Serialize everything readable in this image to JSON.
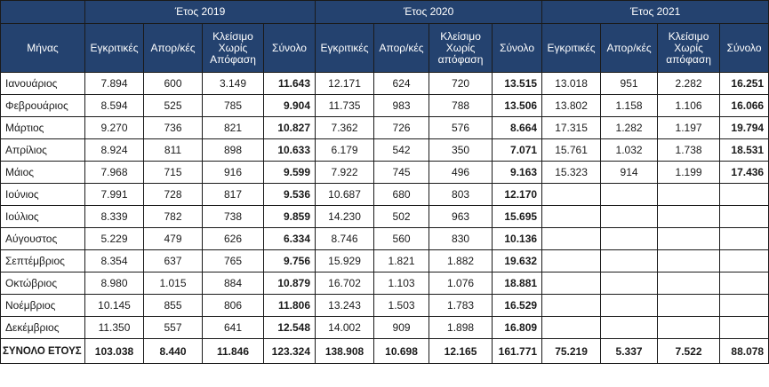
{
  "header": {
    "month_label": "Μήνας",
    "years": [
      "Έτος 2019",
      "Έτος 2020",
      "Έτος 2021"
    ],
    "columns": [
      "Εγκριτικές",
      "Απορ/κές",
      "Κλείσιμο Χωρίς Απόφαση",
      "Σύνολο"
    ],
    "columns_2020": [
      "Εγκριτικές",
      "Απορ/κές",
      "Κλείσιμο Χωρίς απόφαση",
      "Σύνολο"
    ],
    "columns_2021": [
      "Εγκριτικές",
      "Απορ/κές",
      "Κλείσιμο Χωρίς απόφαση",
      "Σύνολο"
    ]
  },
  "rows": [
    {
      "month": "Ιανουάριος",
      "y2019": [
        "7.894",
        "600",
        "3.149",
        "11.643"
      ],
      "y2020": [
        "12.171",
        "624",
        "720",
        "13.515"
      ],
      "y2021": [
        "13.018",
        "951",
        "2.282",
        "16.251"
      ]
    },
    {
      "month": "Φεβρουάριος",
      "y2019": [
        "8.594",
        "525",
        "785",
        "9.904"
      ],
      "y2020": [
        "11.735",
        "983",
        "788",
        "13.506"
      ],
      "y2021": [
        "13.802",
        "1.158",
        "1.106",
        "16.066"
      ]
    },
    {
      "month": "Μάρτιος",
      "y2019": [
        "9.270",
        "736",
        "821",
        "10.827"
      ],
      "y2020": [
        "7.362",
        "726",
        "576",
        "8.664"
      ],
      "y2021": [
        "17.315",
        "1.282",
        "1.197",
        "19.794"
      ]
    },
    {
      "month": "Απρίλιος",
      "y2019": [
        "8.924",
        "811",
        "898",
        "10.633"
      ],
      "y2020": [
        "6.179",
        "542",
        "350",
        "7.071"
      ],
      "y2021": [
        "15.761",
        "1.032",
        "1.738",
        "18.531"
      ]
    },
    {
      "month": "Μάιος",
      "y2019": [
        "7.968",
        "715",
        "916",
        "9.599"
      ],
      "y2020": [
        "7.922",
        "745",
        "496",
        "9.163"
      ],
      "y2021": [
        "15.323",
        "914",
        "1.199",
        "17.436"
      ]
    },
    {
      "month": "Ιούνιος",
      "y2019": [
        "7.991",
        "728",
        "817",
        "9.536"
      ],
      "y2020": [
        "10.687",
        "680",
        "803",
        "12.170"
      ],
      "y2021": [
        "",
        "",
        "",
        ""
      ]
    },
    {
      "month": "Ιούλιος",
      "y2019": [
        "8.339",
        "782",
        "738",
        "9.859"
      ],
      "y2020": [
        "14.230",
        "502",
        "963",
        "15.695"
      ],
      "y2021": [
        "",
        "",
        "",
        ""
      ]
    },
    {
      "month": "Αύγουστος",
      "y2019": [
        "5.229",
        "479",
        "626",
        "6.334"
      ],
      "y2020": [
        "8.746",
        "560",
        "830",
        "10.136"
      ],
      "y2021": [
        "",
        "",
        "",
        ""
      ]
    },
    {
      "month": "Σεπτέμβριος",
      "y2019": [
        "8.354",
        "637",
        "765",
        "9.756"
      ],
      "y2020": [
        "15.929",
        "1.821",
        "1.882",
        "19.632"
      ],
      "y2021": [
        "",
        "",
        "",
        ""
      ]
    },
    {
      "month": "Οκτώβριος",
      "y2019": [
        "8.980",
        "1.015",
        "884",
        "10.879"
      ],
      "y2020": [
        "16.702",
        "1.103",
        "1.076",
        "18.881"
      ],
      "y2021": [
        "",
        "",
        "",
        ""
      ]
    },
    {
      "month": "Νοέμβριος",
      "y2019": [
        "10.145",
        "855",
        "806",
        "11.806"
      ],
      "y2020": [
        "13.243",
        "1.503",
        "1.783",
        "16.529"
      ],
      "y2021": [
        "",
        "",
        "",
        ""
      ]
    },
    {
      "month": "Δεκέμβριος",
      "y2019": [
        "11.350",
        "557",
        "641",
        "12.548"
      ],
      "y2020": [
        "14.002",
        "909",
        "1.898",
        "16.809"
      ],
      "y2021": [
        "",
        "",
        "",
        ""
      ]
    }
  ],
  "totals": {
    "label": "ΣΥΝΟΛΟ ΕΤΟΥΣ",
    "y2019": [
      "103.038",
      "8.440",
      "11.846",
      "123.324"
    ],
    "y2020": [
      "138.908",
      "10.698",
      "12.165",
      "161.771"
    ],
    "y2021": [
      "75.219",
      "5.337",
      "7.522",
      "88.078"
    ]
  },
  "colors": {
    "header_bg": "#24426f",
    "header_text": "#ffffff",
    "border": "#1a1a1a"
  }
}
